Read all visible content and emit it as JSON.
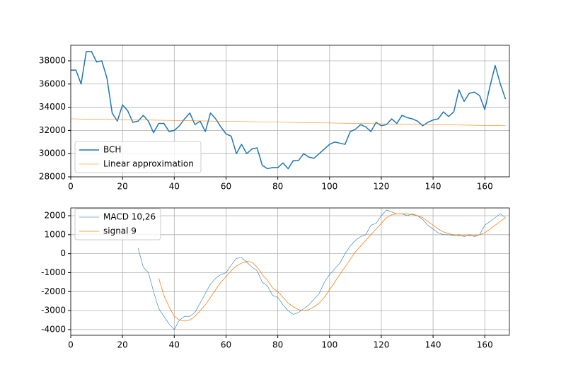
{
  "chart_data": [
    {
      "type": "line",
      "xlim": [
        0,
        169.5
      ],
      "ylim": [
        28000,
        39340
      ],
      "xticks": [
        0,
        20,
        40,
        60,
        80,
        100,
        120,
        140,
        160
      ],
      "yticks": [
        28000,
        30000,
        32000,
        34000,
        36000,
        38000
      ],
      "grid": true,
      "legend": "lower left",
      "series": [
        {
          "name": "BCH",
          "color": "#1f77b4",
          "width": 1.5,
          "x": [
            0,
            2,
            4,
            6,
            8,
            10,
            12,
            14,
            16,
            18,
            20,
            22,
            24,
            26,
            28,
            30,
            32,
            34,
            36,
            38,
            40,
            42,
            44,
            46,
            48,
            50,
            52,
            54,
            56,
            58,
            60,
            62,
            64,
            66,
            68,
            70,
            72,
            74,
            76,
            78,
            80,
            82,
            84,
            86,
            88,
            90,
            92,
            94,
            96,
            98,
            100,
            102,
            104,
            106,
            108,
            110,
            112,
            114,
            116,
            118,
            120,
            122,
            124,
            126,
            128,
            130,
            132,
            134,
            136,
            138,
            140,
            142,
            144,
            146,
            148,
            150,
            152,
            154,
            156,
            158,
            160,
            162,
            164,
            166,
            168
          ],
          "values": [
            37200,
            37200,
            36000,
            38800,
            38800,
            37900,
            38000,
            36500,
            33500,
            32800,
            34200,
            33700,
            32700,
            32800,
            33300,
            32800,
            31800,
            32600,
            32600,
            31900,
            32000,
            32400,
            33000,
            33500,
            32500,
            32800,
            31900,
            33500,
            33000,
            32300,
            31700,
            31500,
            30000,
            30800,
            30000,
            30400,
            30500,
            29000,
            28700,
            28800,
            28800,
            29200,
            28700,
            29400,
            29400,
            30000,
            29700,
            29600,
            30000,
            30400,
            30800,
            31000,
            30900,
            30800,
            31900,
            32100,
            32500,
            32300,
            31900,
            32700,
            32400,
            32500,
            33000,
            32600,
            33300,
            33100,
            33000,
            32800,
            32400,
            32700,
            32900,
            33000,
            33600,
            33200,
            33600,
            35500,
            34500,
            35200,
            35300,
            35000,
            33800,
            35800,
            37600,
            36000,
            34700
          ]
        },
        {
          "name": "Linear approximation",
          "color": "#ff7f0e",
          "width": 0.6,
          "x": [
            0,
            168
          ],
          "values": [
            33000,
            32400
          ]
        }
      ]
    },
    {
      "type": "line",
      "xlim": [
        0,
        169.5
      ],
      "ylim": [
        -4300,
        2410
      ],
      "xticks": [
        0,
        20,
        40,
        60,
        80,
        100,
        120,
        140,
        160
      ],
      "yticks": [
        -4000,
        -3000,
        -2000,
        -1000,
        0,
        1000,
        2000
      ],
      "grid": true,
      "legend": "upper left",
      "series": [
        {
          "name": "MACD 10,26",
          "color": "#1f77b4",
          "width": 0.6,
          "x": [
            26,
            28,
            30,
            32,
            34,
            36,
            38,
            40,
            42,
            44,
            46,
            48,
            50,
            52,
            54,
            56,
            58,
            60,
            62,
            64,
            66,
            68,
            70,
            72,
            74,
            76,
            78,
            80,
            82,
            84,
            86,
            88,
            90,
            92,
            94,
            96,
            98,
            100,
            102,
            104,
            106,
            108,
            110,
            112,
            114,
            116,
            118,
            120,
            122,
            124,
            126,
            128,
            130,
            132,
            134,
            136,
            138,
            140,
            142,
            144,
            146,
            148,
            150,
            152,
            154,
            156,
            158,
            160,
            162,
            164,
            166,
            168
          ],
          "values": [
            300,
            -700,
            -1000,
            -2000,
            -2900,
            -3300,
            -3700,
            -4000,
            -3500,
            -3300,
            -3300,
            -3100,
            -2600,
            -2100,
            -1600,
            -1300,
            -1100,
            -1000,
            -600,
            -250,
            -200,
            -450,
            -700,
            -900,
            -1500,
            -1700,
            -2200,
            -2300,
            -2700,
            -3000,
            -3200,
            -3100,
            -2900,
            -2700,
            -2400,
            -2100,
            -1500,
            -1100,
            -800,
            -500,
            0,
            400,
            700,
            900,
            1000,
            1500,
            1600,
            2000,
            2300,
            2200,
            2100,
            2100,
            2000,
            2100,
            2000,
            1800,
            1500,
            1300,
            1100,
            1000,
            1000,
            950,
            1000,
            900,
            1000,
            900,
            1000,
            1500,
            1700,
            1900,
            2100,
            1900
          ]
        },
        {
          "name": "signal 9",
          "color": "#ff7f0e",
          "width": 0.8,
          "x": [
            34,
            36,
            38,
            40,
            42,
            44,
            46,
            48,
            50,
            52,
            54,
            56,
            58,
            60,
            62,
            64,
            66,
            68,
            70,
            72,
            74,
            76,
            78,
            80,
            82,
            84,
            86,
            88,
            90,
            92,
            94,
            96,
            98,
            100,
            102,
            104,
            106,
            108,
            110,
            112,
            114,
            116,
            118,
            120,
            122,
            124,
            126,
            128,
            130,
            132,
            134,
            136,
            138,
            140,
            142,
            144,
            146,
            148,
            150,
            152,
            154,
            156,
            158,
            160,
            162,
            164,
            166,
            168
          ],
          "values": [
            -1300,
            -2200,
            -2800,
            -3300,
            -3500,
            -3550,
            -3500,
            -3300,
            -3000,
            -2700,
            -2300,
            -1900,
            -1500,
            -1200,
            -900,
            -650,
            -500,
            -400,
            -450,
            -700,
            -1100,
            -1400,
            -1800,
            -2000,
            -2300,
            -2600,
            -2800,
            -2950,
            -3000,
            -2950,
            -2800,
            -2600,
            -2300,
            -1900,
            -1500,
            -1100,
            -700,
            -300,
            100,
            400,
            700,
            1000,
            1300,
            1600,
            1900,
            2050,
            2100,
            2100,
            2100,
            2050,
            2000,
            1900,
            1700,
            1500,
            1300,
            1150,
            1050,
            1000,
            950,
            950,
            950,
            950,
            1000,
            1100,
            1300,
            1500,
            1700,
            1900
          ]
        }
      ]
    }
  ]
}
